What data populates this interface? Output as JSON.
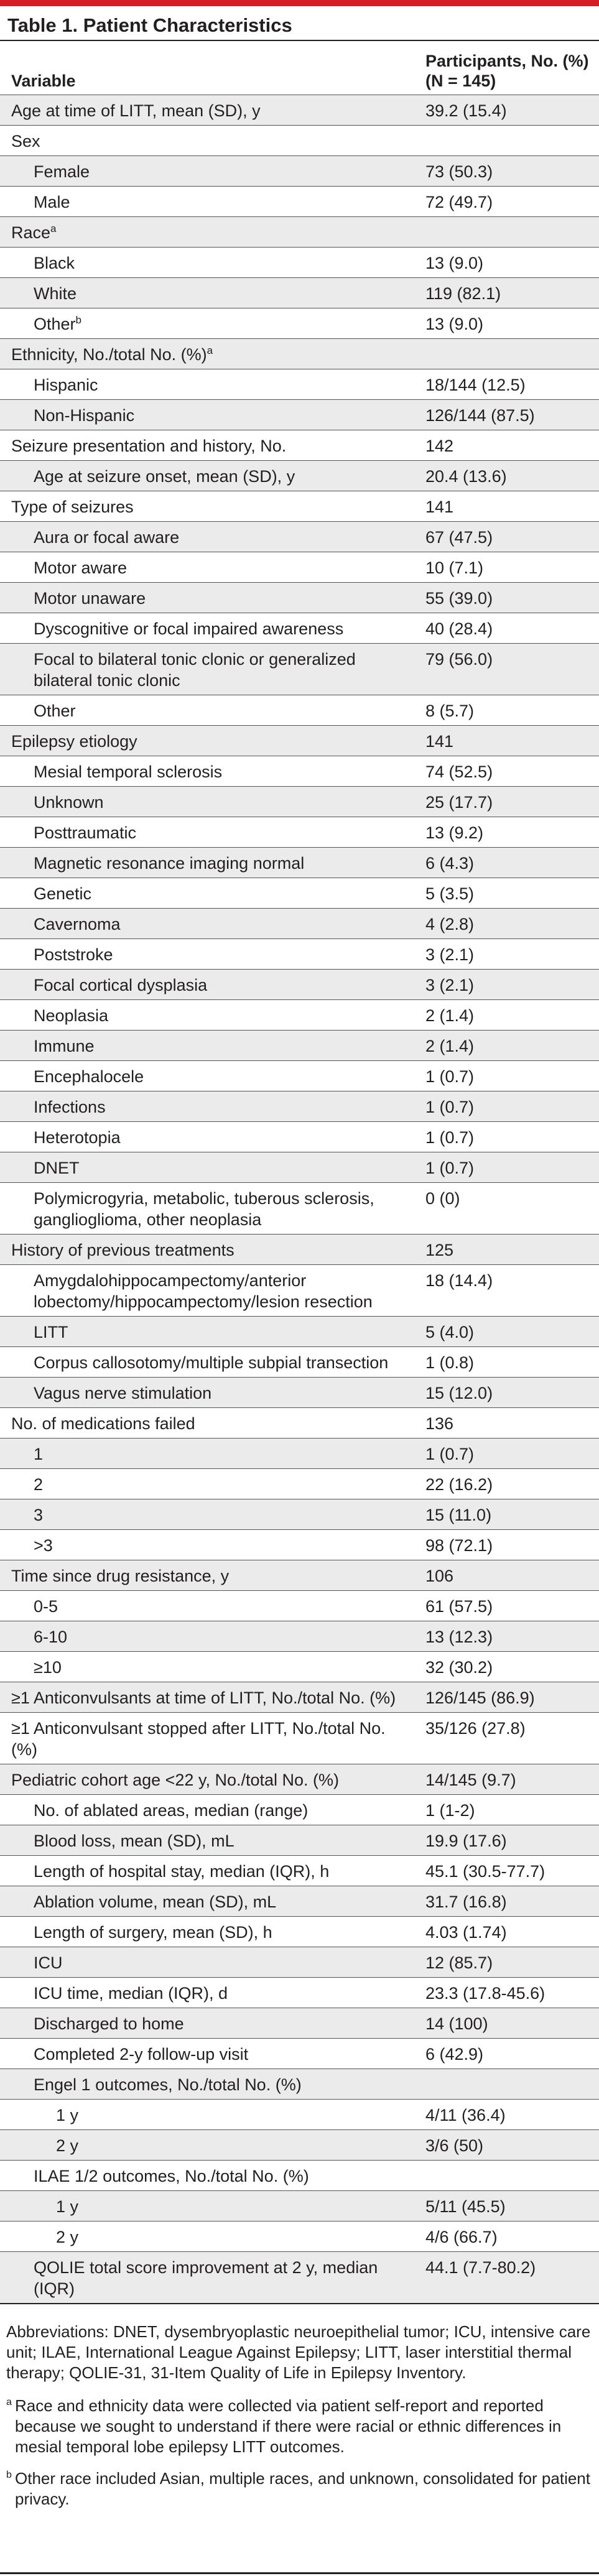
{
  "title": "Table 1. Patient Characteristics",
  "columns": {
    "variable": "Variable",
    "participants": "Participants, No. (%) (N = 145)"
  },
  "rows": [
    {
      "label": "Age at time of LITT, mean (SD), y",
      "value": "39.2 (15.4)",
      "indent": 0
    },
    {
      "label": "Sex",
      "value": "",
      "indent": 0
    },
    {
      "label": "Female",
      "value": "73 (50.3)",
      "indent": 1
    },
    {
      "label": "Male",
      "value": "72 (49.7)",
      "indent": 1
    },
    {
      "label": "Race",
      "sup": "a",
      "value": "",
      "indent": 0
    },
    {
      "label": "Black",
      "value": "13 (9.0)",
      "indent": 1
    },
    {
      "label": "White",
      "value": "119 (82.1)",
      "indent": 1
    },
    {
      "label": "Other",
      "sup": "b",
      "value": "13 (9.0)",
      "indent": 1
    },
    {
      "label": "Ethnicity, No./total No. (%)",
      "sup": "a",
      "value": "",
      "indent": 0
    },
    {
      "label": "Hispanic",
      "value": "18/144 (12.5)",
      "indent": 1
    },
    {
      "label": "Non-Hispanic",
      "value": "126/144 (87.5)",
      "indent": 1
    },
    {
      "label": "Seizure presentation and history, No.",
      "value": "142",
      "indent": 0
    },
    {
      "label": "Age at seizure onset, mean (SD), y",
      "value": "20.4 (13.6)",
      "indent": 1
    },
    {
      "label": "Type of seizures",
      "value": "141",
      "indent": 0
    },
    {
      "label": "Aura or focal aware",
      "value": "67 (47.5)",
      "indent": 1
    },
    {
      "label": "Motor aware",
      "value": "10 (7.1)",
      "indent": 1
    },
    {
      "label": "Motor unaware",
      "value": "55 (39.0)",
      "indent": 1
    },
    {
      "label": "Dyscognitive or focal impaired awareness",
      "value": "40 (28.4)",
      "indent": 1
    },
    {
      "label": "Focal to bilateral tonic clonic or generalized bilateral tonic clonic",
      "value": "79 (56.0)",
      "indent": 1
    },
    {
      "label": "Other",
      "value": "8 (5.7)",
      "indent": 1
    },
    {
      "label": "Epilepsy etiology",
      "value": "141",
      "indent": 0
    },
    {
      "label": "Mesial temporal sclerosis",
      "value": "74 (52.5)",
      "indent": 1
    },
    {
      "label": "Unknown",
      "value": "25 (17.7)",
      "indent": 1
    },
    {
      "label": "Posttraumatic",
      "value": "13 (9.2)",
      "indent": 1
    },
    {
      "label": "Magnetic resonance imaging normal",
      "value": "6 (4.3)",
      "indent": 1
    },
    {
      "label": "Genetic",
      "value": "5 (3.5)",
      "indent": 1
    },
    {
      "label": "Cavernoma",
      "value": "4 (2.8)",
      "indent": 1
    },
    {
      "label": "Poststroke",
      "value": "3 (2.1)",
      "indent": 1
    },
    {
      "label": "Focal cortical dysplasia",
      "value": "3 (2.1)",
      "indent": 1
    },
    {
      "label": "Neoplasia",
      "value": "2 (1.4)",
      "indent": 1
    },
    {
      "label": "Immune",
      "value": "2 (1.4)",
      "indent": 1
    },
    {
      "label": "Encephalocele",
      "value": "1 (0.7)",
      "indent": 1
    },
    {
      "label": "Infections",
      "value": "1 (0.7)",
      "indent": 1
    },
    {
      "label": "Heterotopia",
      "value": "1 (0.7)",
      "indent": 1
    },
    {
      "label": "DNET",
      "value": "1 (0.7)",
      "indent": 1
    },
    {
      "label": "Polymicrogyria, metabolic, tuberous sclerosis, ganglioglioma, other neoplasia",
      "value": "0 (0)",
      "indent": 1
    },
    {
      "label": "History of previous treatments",
      "value": "125",
      "indent": 0
    },
    {
      "label": "Amygdalohippocampectomy/anterior lobectomy/hippocampectomy/lesion resection",
      "value": "18 (14.4)",
      "indent": 1
    },
    {
      "label": "LITT",
      "value": "5 (4.0)",
      "indent": 1
    },
    {
      "label": "Corpus callosotomy/multiple subpial transection",
      "value": "1 (0.8)",
      "indent": 1
    },
    {
      "label": "Vagus nerve stimulation",
      "value": "15 (12.0)",
      "indent": 1
    },
    {
      "label": "No. of medications failed",
      "value": "136",
      "indent": 0
    },
    {
      "label": "1",
      "value": "1 (0.7)",
      "indent": 1
    },
    {
      "label": "2",
      "value": "22 (16.2)",
      "indent": 1
    },
    {
      "label": "3",
      "value": "15 (11.0)",
      "indent": 1
    },
    {
      "label": ">3",
      "value": "98 (72.1)",
      "indent": 1
    },
    {
      "label": "Time since drug resistance, y",
      "value": "106",
      "indent": 0
    },
    {
      "label": "0-5",
      "value": "61 (57.5)",
      "indent": 1
    },
    {
      "label": "6-10",
      "value": "13 (12.3)",
      "indent": 1
    },
    {
      "label": "≥10",
      "value": "32 (30.2)",
      "indent": 1
    },
    {
      "label": "≥1 Anticonvulsants at time of LITT, No./total No. (%)",
      "value": "126/145 (86.9)",
      "indent": 0
    },
    {
      "label": "≥1 Anticonvulsant stopped after LITT, No./total No. (%)",
      "value": "35/126 (27.8)",
      "indent": 0
    },
    {
      "label": "Pediatric cohort age <22 y, No./total No. (%)",
      "value": "14/145 (9.7)",
      "indent": 0
    },
    {
      "label": "No. of ablated areas, median (range)",
      "value": "1 (1-2)",
      "indent": 1
    },
    {
      "label": "Blood loss, mean (SD), mL",
      "value": "19.9 (17.6)",
      "indent": 1
    },
    {
      "label": "Length of hospital stay, median (IQR), h",
      "value": "45.1 (30.5-77.7)",
      "indent": 1
    },
    {
      "label": "Ablation volume, mean (SD), mL",
      "value": "31.7 (16.8)",
      "indent": 1
    },
    {
      "label": "Length of surgery, mean (SD), h",
      "value": "4.03 (1.74)",
      "indent": 1
    },
    {
      "label": "ICU",
      "value": "12 (85.7)",
      "indent": 1
    },
    {
      "label": "ICU time, median (IQR), d",
      "value": "23.3 (17.8-45.6)",
      "indent": 1
    },
    {
      "label": "Discharged to home",
      "value": "14 (100)",
      "indent": 1
    },
    {
      "label": "Completed 2-y follow-up visit",
      "value": "6 (42.9)",
      "indent": 1
    },
    {
      "label": "Engel 1 outcomes, No./total No. (%)",
      "value": "",
      "indent": 1
    },
    {
      "label": "1 y",
      "value": "4/11 (36.4)",
      "indent": 2
    },
    {
      "label": "2 y",
      "value": "3/6 (50)",
      "indent": 2
    },
    {
      "label": "ILAE 1/2 outcomes, No./total No. (%)",
      "value": "",
      "indent": 1
    },
    {
      "label": "1 y",
      "value": "5/11 (45.5)",
      "indent": 2
    },
    {
      "label": "2 y",
      "value": "4/6 (66.7)",
      "indent": 2
    },
    {
      "label": "QOLIE total score improvement at 2 y, median (IQR)",
      "value": "44.1 (7.7-80.2)",
      "indent": 1
    }
  ],
  "abbreviations": "Abbreviations: DNET, dysembryoplastic neuroepithelial tumor; ICU, intensive care unit; ILAE, International League Against Epilepsy; LITT, laser interstitial thermal therapy; QOLIE-31, 31-Item Quality of Life in Epilepsy Inventory.",
  "footnotes": [
    {
      "mark": "a",
      "text": "Race and ethnicity data were collected via patient self-report and reported because we sought to understand if there were racial or ethnic differences in mesial temporal lobe epilepsy LITT outcomes."
    },
    {
      "mark": "b",
      "text": "Other race included Asian, multiple races, and unknown, consolidated for patient privacy."
    }
  ]
}
